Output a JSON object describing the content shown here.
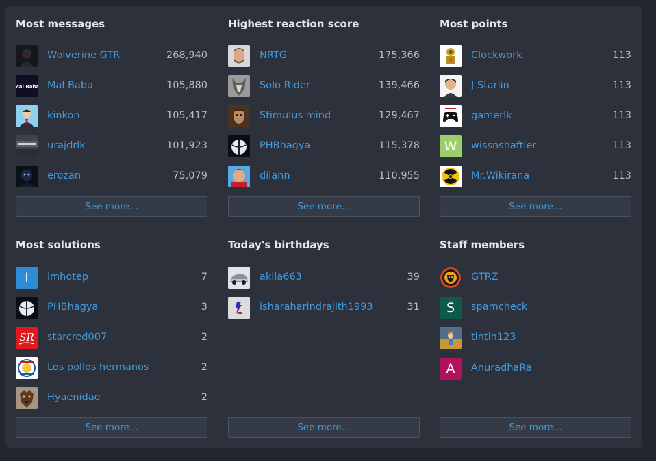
{
  "blocks": {
    "most_messages": {
      "title": "Most messages",
      "see_more": "See more...",
      "items": [
        {
          "name": "Wolverine GTR",
          "value": "268,940"
        },
        {
          "name": "Mal Baba",
          "value": "105,880"
        },
        {
          "name": "kinkon",
          "value": "105,417"
        },
        {
          "name": "urajdrlk",
          "value": "101,923"
        },
        {
          "name": "erozan",
          "value": "75,079"
        }
      ]
    },
    "highest_reaction": {
      "title": "Highest reaction score",
      "see_more": "See more...",
      "items": [
        {
          "name": "NRTG",
          "value": "175,366"
        },
        {
          "name": "Solo Rider",
          "value": "139,466"
        },
        {
          "name": "Stimulus mind",
          "value": "129,467"
        },
        {
          "name": "PHBhagya",
          "value": "115,378"
        },
        {
          "name": "dilann",
          "value": "110,955"
        }
      ]
    },
    "most_points": {
      "title": "Most points",
      "see_more": "See more...",
      "items": [
        {
          "name": "Clockwork",
          "value": "113"
        },
        {
          "name": "J Starlin",
          "value": "113"
        },
        {
          "name": "gamerlk",
          "value": "113"
        },
        {
          "name": "wissnshaftler",
          "value": "113"
        },
        {
          "name": "Mr.Wikirana",
          "value": "113"
        }
      ]
    },
    "most_solutions": {
      "title": "Most solutions",
      "see_more": "See more...",
      "items": [
        {
          "name": "imhotep",
          "value": "7"
        },
        {
          "name": "PHBhagya",
          "value": "3"
        },
        {
          "name": "starcred007",
          "value": "2"
        },
        {
          "name": "Los pollos hermanos",
          "value": "2"
        },
        {
          "name": "Hyaenidae",
          "value": "2"
        }
      ]
    },
    "birthdays": {
      "title": "Today's birthdays",
      "see_more": "See more...",
      "items": [
        {
          "name": "akila663",
          "value": "39"
        },
        {
          "name": "isharaharindrajith1993",
          "value": "31"
        }
      ]
    },
    "staff": {
      "title": "Staff members",
      "see_more": "See more...",
      "items": [
        {
          "name": "GTRZ"
        },
        {
          "name": "spamcheck"
        },
        {
          "name": "tintin123"
        },
        {
          "name": "AnuradhaRa"
        }
      ]
    }
  },
  "avatar_letters": {
    "imhotep": "I",
    "wissnshaftler": "W",
    "spamcheck": "S",
    "AnuradhaRa": "A"
  },
  "avatar_logo_text": {
    "mal_baba": "Mal Baba",
    "starcred": "SR"
  },
  "colors": {
    "link": "#3f9be0",
    "panel": "#2c313b",
    "letter_imhotep": "#2f8bd4",
    "letter_wissnshaftler": "#9ccf6a",
    "letter_spamcheck": "#0f5a48",
    "letter_anuradhara": "#b0125e"
  }
}
